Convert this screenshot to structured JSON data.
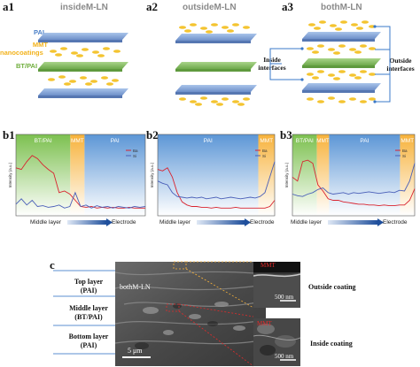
{
  "panels": {
    "a1": {
      "label": "a1",
      "title": "insideM-LN"
    },
    "a2": {
      "label": "a2",
      "title": "outsideM-LN"
    },
    "a3": {
      "label": "a3",
      "title": "bothM-LN"
    },
    "b1": {
      "label": "b1"
    },
    "b2": {
      "label": "b2"
    },
    "b3": {
      "label": "b3"
    },
    "c": {
      "label": "c"
    }
  },
  "legend_a": {
    "pai": "PAI",
    "mmt_line1": "MMT",
    "mmt_line2": "nanocoatings",
    "btpai": "BT/PAI"
  },
  "interfaces": {
    "inside_1": "Inside",
    "inside_2": "interfaces",
    "outside_1": "Outside",
    "outside_2": "interfaces"
  },
  "linescan": {
    "ylabel": "Intensity (a.u.)",
    "xlabel_left": "Middle layer",
    "xlabel_right": "Electrode",
    "legend": [
      "Ba",
      "Si"
    ],
    "regions": {
      "btpai": "BT/PAI",
      "mmt": "MMT",
      "pai": "PAI"
    },
    "colors": {
      "ba": "#d9232f",
      "si": "#4a5fb8",
      "btpai": "#7cc04f",
      "mmt": "#f7b23b",
      "pai": "#5c96d6"
    }
  },
  "chart_data": [
    {
      "type": "line",
      "panel": "b1",
      "regions": [
        "BT/PAI",
        "MMT",
        "PAI"
      ],
      "series": [
        {
          "name": "Ba",
          "values": [
            0.62,
            0.6,
            0.7,
            0.78,
            0.74,
            0.66,
            0.6,
            0.55,
            0.3,
            0.32,
            0.28,
            0.2,
            0.12,
            0.11,
            0.12,
            0.1,
            0.11,
            0.1,
            0.11,
            0.1,
            0.1,
            0.11,
            0.1,
            0.1,
            0.1
          ]
        },
        {
          "name": "Si",
          "values": [
            0.15,
            0.22,
            0.14,
            0.2,
            0.12,
            0.13,
            0.11,
            0.12,
            0.14,
            0.1,
            0.12,
            0.3,
            0.12,
            0.14,
            0.1,
            0.13,
            0.11,
            0.12,
            0.1,
            0.12,
            0.11,
            0.1,
            0.12,
            0.11,
            0.12
          ]
        }
      ]
    },
    {
      "type": "line",
      "panel": "b2",
      "regions": [
        "PAI",
        "MMT"
      ],
      "series": [
        {
          "name": "Ba",
          "values": [
            0.6,
            0.58,
            0.62,
            0.5,
            0.3,
            0.18,
            0.14,
            0.12,
            0.12,
            0.11,
            0.11,
            0.1,
            0.11,
            0.1,
            0.1,
            0.1,
            0.11,
            0.1,
            0.1,
            0.1,
            0.1,
            0.1,
            0.1,
            0.12,
            0.2
          ]
        },
        {
          "name": "Si",
          "values": [
            0.45,
            0.42,
            0.4,
            0.3,
            0.25,
            0.24,
            0.23,
            0.24,
            0.23,
            0.24,
            0.22,
            0.23,
            0.24,
            0.22,
            0.23,
            0.24,
            0.23,
            0.22,
            0.23,
            0.24,
            0.23,
            0.25,
            0.3,
            0.5,
            0.7
          ]
        }
      ]
    },
    {
      "type": "line",
      "panel": "b3",
      "regions": [
        "BT/PAI",
        "MMT",
        "PAI",
        "MMT"
      ],
      "series": [
        {
          "name": "Ba",
          "values": [
            0.5,
            0.45,
            0.7,
            0.72,
            0.68,
            0.4,
            0.32,
            0.22,
            0.2,
            0.2,
            0.18,
            0.17,
            0.16,
            0.15,
            0.15,
            0.14,
            0.14,
            0.13,
            0.14,
            0.13,
            0.13,
            0.14,
            0.14,
            0.2,
            0.35
          ]
        },
        {
          "name": "Si",
          "values": [
            0.28,
            0.26,
            0.25,
            0.28,
            0.3,
            0.34,
            0.36,
            0.3,
            0.28,
            0.29,
            0.3,
            0.28,
            0.3,
            0.29,
            0.3,
            0.31,
            0.3,
            0.29,
            0.3,
            0.31,
            0.3,
            0.33,
            0.32,
            0.45,
            0.68
          ]
        }
      ]
    }
  ],
  "sem": {
    "layers": [
      {
        "line1": "Top layer",
        "line2": "(PAI)"
      },
      {
        "line1": "Middle layer",
        "line2": "(BT/PAI)"
      },
      {
        "line1": "Bottom layer",
        "line2": "(PAI)"
      }
    ],
    "sample": "bothM-LN",
    "scale_main": "5 μm",
    "zoom_top_tag": "MMT",
    "zoom_scale_top": "500 nm",
    "zoom_bottom_tag": "MMT",
    "zoom_scale_bottom": "500 nm",
    "outside_coating": "Outside coating",
    "inside_coating": "Inside coating"
  }
}
